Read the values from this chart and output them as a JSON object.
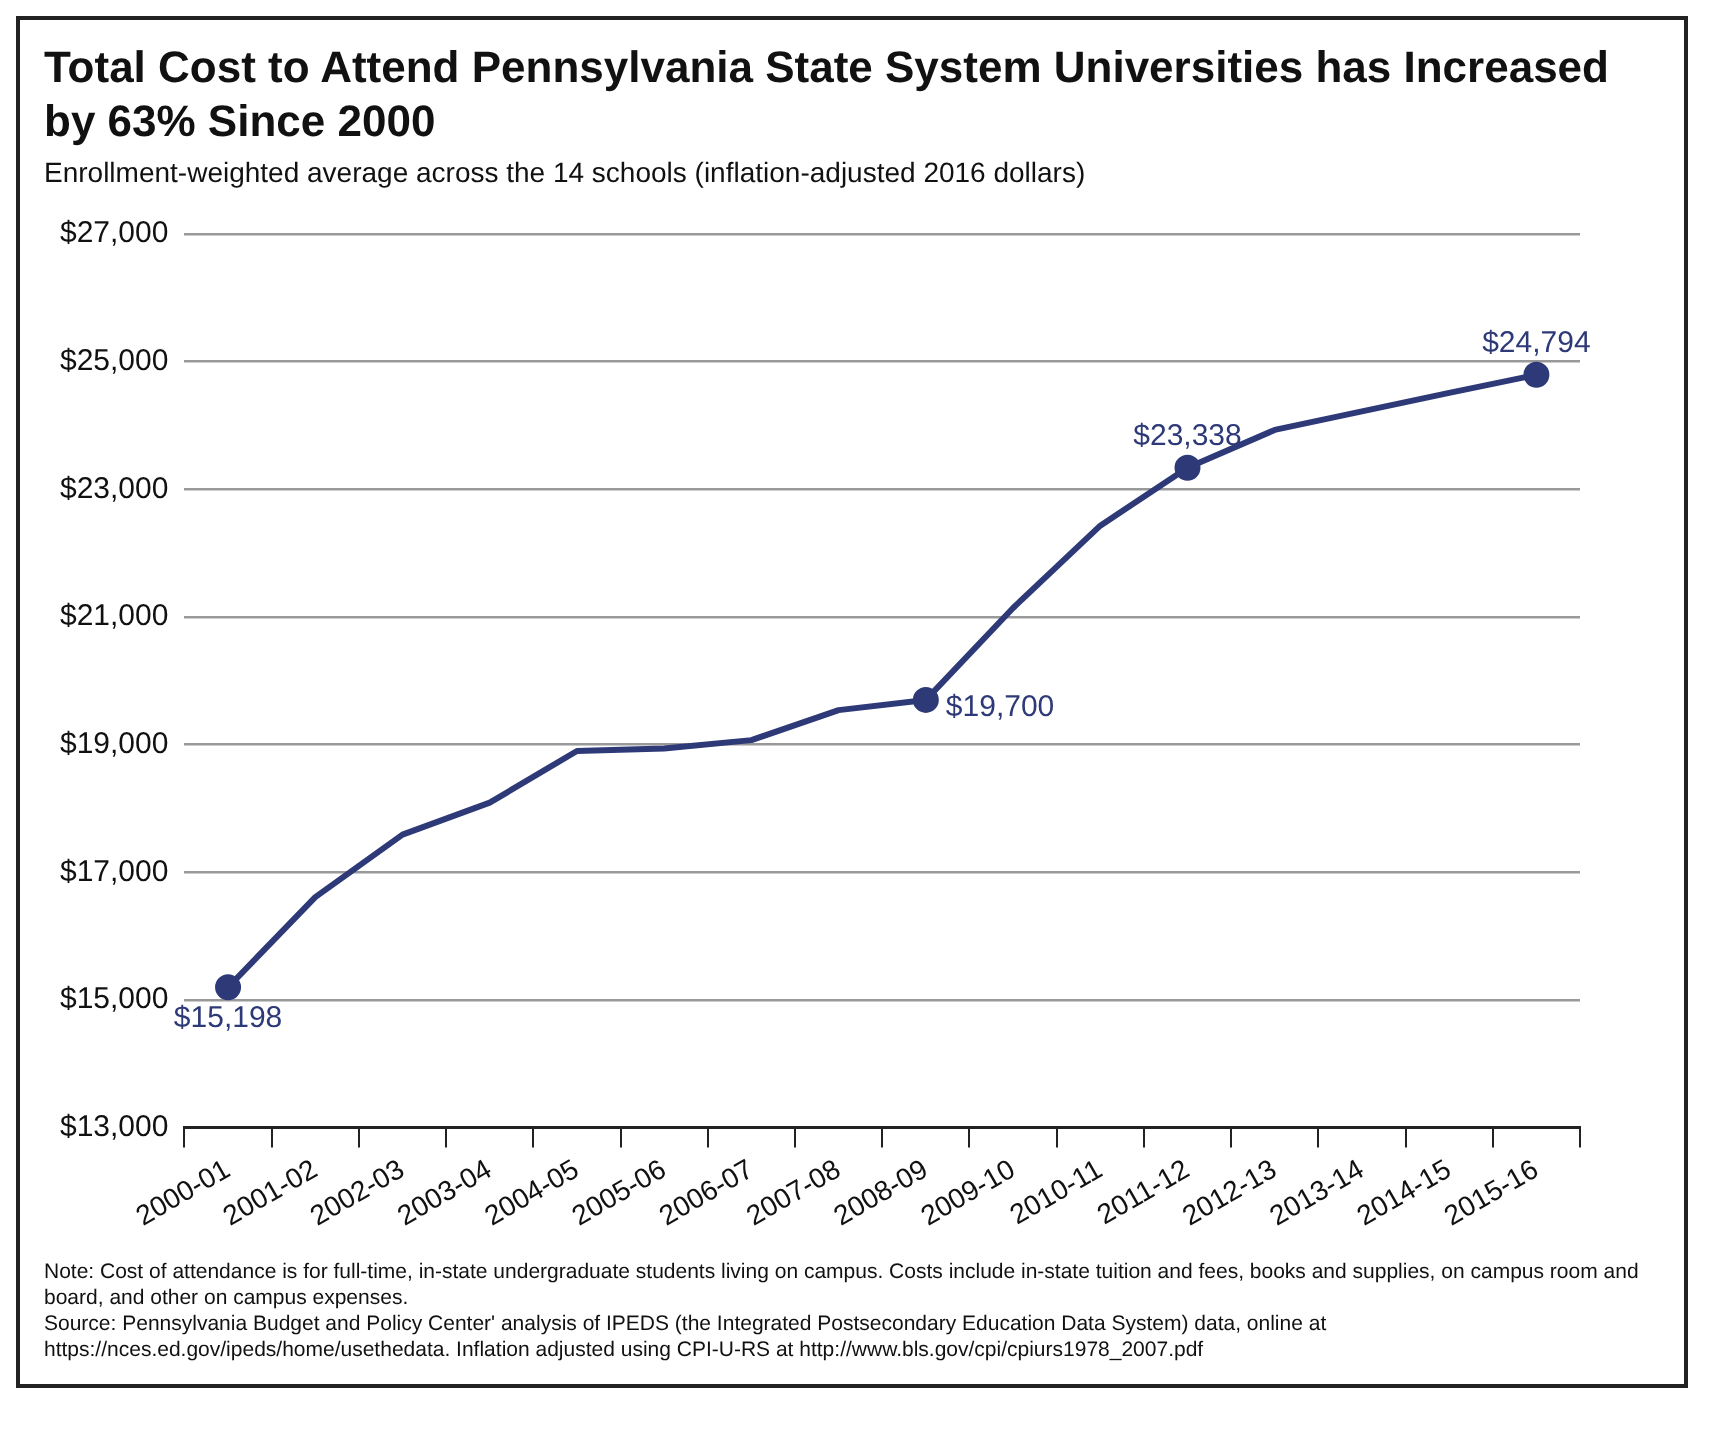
{
  "chart_data": {
    "type": "line",
    "title": "Total Cost to Attend Pennsylvania State System Universities has Increased by 63% Since 2000",
    "subtitle": "Enrollment-weighted average across the 14 schools (inflation-adjusted 2016 dollars)",
    "categories": [
      "2000-01",
      "2001-02",
      "2002-03",
      "2003-04",
      "2004-05",
      "2005-06",
      "2006-07",
      "2007-08",
      "2008-09",
      "2009-10",
      "2010-11",
      "2011-12",
      "2012-13",
      "2013-14",
      "2014-15",
      "2015-16"
    ],
    "series": [
      {
        "color": "#2e3a78",
        "values": [
          15198,
          16610,
          17590,
          18090,
          18900,
          18940,
          19070,
          19540,
          19700,
          21140,
          22430,
          23338,
          23930,
          24220,
          24510,
          24794
        ]
      },
      {
        "type": "scatter",
        "marker": "circle",
        "color": "#2e3a78",
        "values": [
          15198,
          null,
          null,
          null,
          null,
          null,
          null,
          null,
          19700,
          null,
          null,
          23338,
          null,
          null,
          null,
          24794
        ],
        "value_labels": [
          "$15,198",
          null,
          null,
          null,
          null,
          null,
          null,
          null,
          "$19,700",
          null,
          null,
          "$23,338",
          null,
          null,
          null,
          "$24,794"
        ]
      }
    ],
    "ylim": [
      13000,
      27000
    ],
    "yticks": [
      {
        "value": 13000,
        "label": "$13,000"
      },
      {
        "value": 15000,
        "label": "$15,000"
      },
      {
        "value": 17000,
        "label": "$17,000"
      },
      {
        "value": 19000,
        "label": "$19,000"
      },
      {
        "value": 21000,
        "label": "$21,000"
      },
      {
        "value": 23000,
        "label": "$23,000"
      },
      {
        "value": 25000,
        "label": "$25,000"
      },
      {
        "value": 27000,
        "label": "$27,000"
      }
    ],
    "grid": "y",
    "line_style": "solid",
    "legend": false,
    "annotations": [
      "Note: Cost of attendance is for full-time, in-state undergraduate students living on campus. Costs include in-state tuition and fees, books and supplies, on campus room and board, and other on campus expenses.",
      "Source: Pennsylvania Budget and Policy Center' analysis of IPEDS (the Integrated Postsecondary Education Data System) data, online at https://nces.ed.gov/ipeds/home/usethedata. Inflation adjusted using CPI-U-RS at http://www.bls.gov/cpi/cpiurs1978_2007.pdf"
    ]
  }
}
